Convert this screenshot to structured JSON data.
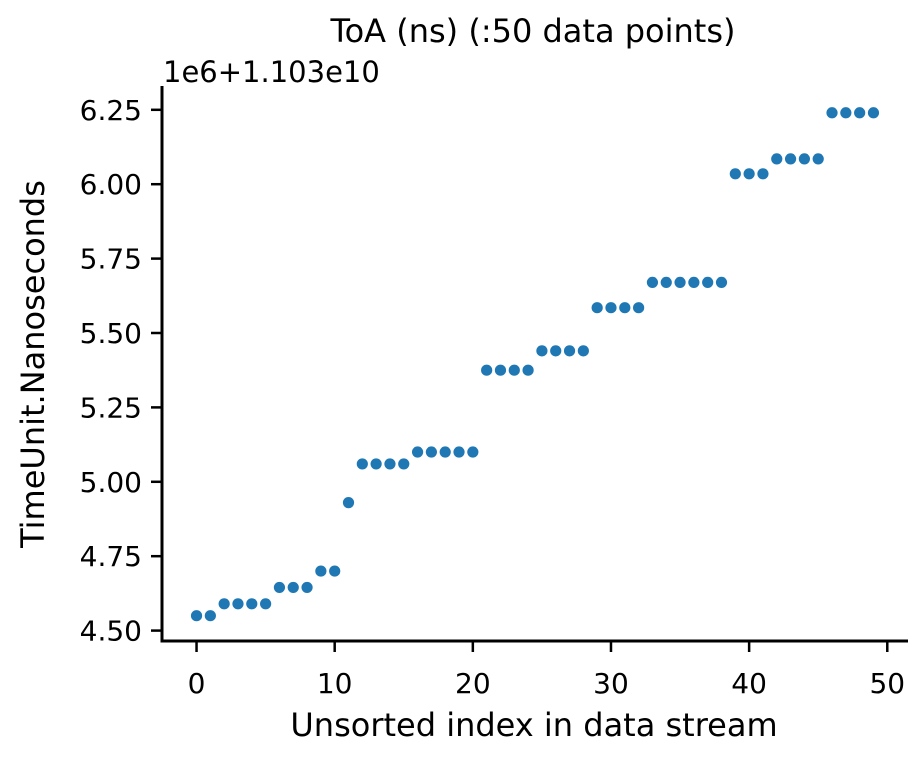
{
  "chart_data": {
    "type": "scatter",
    "title": "ToA (ns) (:50 data points)",
    "xlabel": "Unsorted index in data stream",
    "ylabel": "TimeUnit.Nanoseconds",
    "offset_label": "1e6+1.103e10",
    "xlim": [
      -2.5,
      51.5
    ],
    "ylim": [
      4.465,
      6.33
    ],
    "x_ticks": [
      0,
      10,
      20,
      30,
      40,
      50
    ],
    "x_tick_labels": [
      "0",
      "10",
      "20",
      "30",
      "40",
      "50"
    ],
    "y_ticks": [
      4.5,
      4.75,
      5.0,
      5.25,
      5.5,
      5.75,
      6.0,
      6.25
    ],
    "y_tick_labels": [
      "4.50",
      "4.75",
      "5.00",
      "5.25",
      "5.50",
      "5.75",
      "6.00",
      "6.25"
    ],
    "grid": false,
    "marker_color": "#1f77b4",
    "x": [
      0,
      1,
      2,
      3,
      4,
      5,
      6,
      7,
      8,
      9,
      10,
      11,
      12,
      13,
      14,
      15,
      16,
      17,
      18,
      19,
      20,
      21,
      22,
      23,
      24,
      25,
      26,
      27,
      28,
      29,
      30,
      31,
      32,
      33,
      34,
      35,
      36,
      37,
      38,
      39,
      40,
      41,
      42,
      43,
      44,
      45,
      46,
      47,
      48,
      49
    ],
    "y": [
      4.55,
      4.55,
      4.59,
      4.59,
      4.59,
      4.59,
      4.645,
      4.645,
      4.645,
      4.7,
      4.7,
      4.93,
      5.06,
      5.06,
      5.06,
      5.06,
      5.1,
      5.1,
      5.1,
      5.1,
      5.1,
      5.375,
      5.375,
      5.375,
      5.375,
      5.44,
      5.44,
      5.44,
      5.44,
      5.585,
      5.585,
      5.585,
      5.585,
      5.67,
      5.67,
      5.67,
      5.67,
      5.67,
      5.67,
      6.035,
      6.035,
      6.035,
      6.085,
      6.085,
      6.085,
      6.085,
      6.24,
      6.24,
      6.24,
      6.24
    ]
  }
}
